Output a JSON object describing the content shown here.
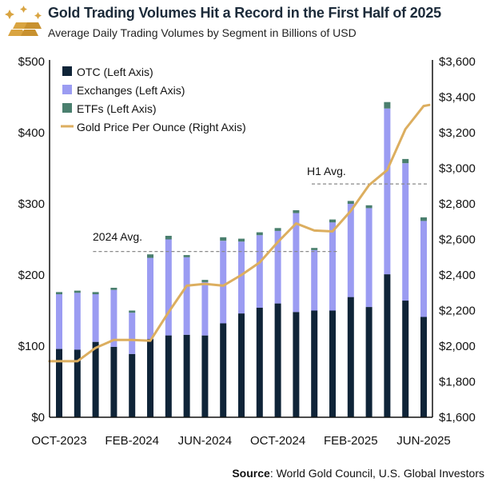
{
  "header": {
    "title": "Gold Trading Volumes Hit a Record in the First Half of 2025",
    "subtitle": "Average Daily Trading Volumes by Segment in Billions of USD"
  },
  "source": {
    "label": "Source",
    "text": ": World Gold Council, U.S. Global Investors"
  },
  "colors": {
    "otc": "#0f2438",
    "exchanges": "#9b9cf2",
    "etfs": "#4a7f6e",
    "gold_line": "#dcae5f",
    "gold_logo": "#d9a441"
  },
  "chart_data": {
    "type": "bar",
    "title": "Gold Trading Volumes Hit a Record in the First Half of 2025",
    "stacked": true,
    "categories": [
      "Oct-2023",
      "Nov-2023",
      "Dec-2023",
      "Jan-2024",
      "Feb-2024",
      "Mar-2024",
      "Apr-2024",
      "May-2024",
      "Jun-2024",
      "Jul-2024",
      "Aug-2024",
      "Sep-2024",
      "Oct-2024",
      "Nov-2024",
      "Dec-2024",
      "Jan-2025",
      "Feb-2025",
      "Mar-2025",
      "Apr-2025",
      "May-2025",
      "Jun-2025"
    ],
    "x_tick_labels": [
      {
        "label": "OCT-2023",
        "index": 0
      },
      {
        "label": "FEB-2024",
        "index": 4
      },
      {
        "label": "JUN-2024",
        "index": 8
      },
      {
        "label": "OCT-2024",
        "index": 12
      },
      {
        "label": "FEB-2025",
        "index": 16
      },
      {
        "label": "JUN-2025",
        "index": 20
      }
    ],
    "series": [
      {
        "name": "OTC (Left Axis)",
        "axis": "left",
        "values": [
          96,
          95,
          106,
          99,
          89,
          110,
          115,
          116,
          115,
          132,
          146,
          154,
          160,
          148,
          150,
          150,
          169,
          155,
          201,
          164,
          141
        ]
      },
      {
        "name": "Exchanges (Left Axis)",
        "axis": "left",
        "values": [
          77,
          80,
          67,
          80,
          58,
          114,
          135,
          109,
          75,
          116,
          101,
          102,
          102,
          139,
          85,
          124,
          131,
          139,
          233,
          193,
          135
        ]
      },
      {
        "name": "ETFs (Left Axis)",
        "axis": "left",
        "values": [
          3,
          3,
          3,
          3,
          3,
          5,
          5,
          3,
          3,
          5,
          4,
          4,
          4,
          4,
          3,
          4,
          4,
          4,
          9,
          6,
          5
        ]
      },
      {
        "name": "Gold Price Per Ounce (Right Axis)",
        "axis": "right",
        "type": "line",
        "values": [
          1915,
          1915,
          1990,
          2035,
          2035,
          2030,
          2190,
          2340,
          2350,
          2340,
          2400,
          2470,
          2585,
          2690,
          2650,
          2645,
          2760,
          2905,
          2990,
          3220,
          3350
        ]
      }
    ],
    "left_axis": {
      "min": 0,
      "max": 500,
      "ticks": [
        "$0",
        "$100",
        "$200",
        "$300",
        "$400",
        "$500"
      ]
    },
    "right_axis": {
      "min": 1600,
      "max": 3600,
      "ticks": [
        "$1,600",
        "$1,800",
        "$2,000",
        "$2,200",
        "$2,400",
        "$2,600",
        "$2,800",
        "$3,000",
        "$3,200",
        "$3,400",
        "$3,600"
      ]
    },
    "annotations": [
      {
        "label": "2024 Avg.",
        "value": 233,
        "from_index": 3,
        "to_index": 15
      },
      {
        "label": "H1 Avg.",
        "value": 328,
        "from_index": 15,
        "to_index": 20
      }
    ],
    "legend_position": "top-left",
    "grid": false
  }
}
